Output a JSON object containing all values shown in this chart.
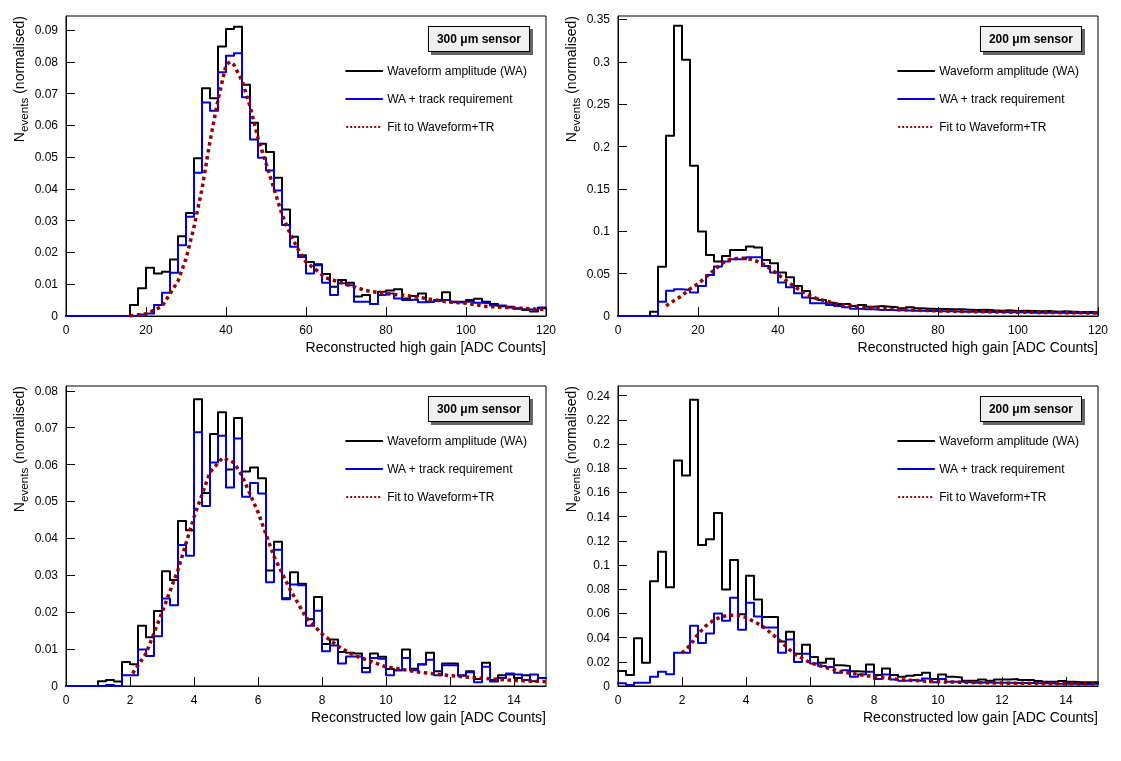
{
  "chart_data": [
    {
      "type": "histogram",
      "xlabel": "Reconstructed high gain [ADC Counts]",
      "ylabel": "N$_{events}$ (normalised)",
      "annotations": [
        "300 μm sensor"
      ],
      "legend": "top right",
      "bins": [
        0,
        2,
        4,
        6,
        8,
        10,
        12,
        14,
        16,
        18,
        20,
        22,
        24,
        26,
        28,
        30,
        32,
        34,
        36,
        38,
        40,
        42,
        44,
        46,
        48,
        50,
        52,
        54,
        56,
        58,
        60,
        62,
        64,
        66,
        68,
        70,
        72,
        74,
        76,
        78,
        80,
        82,
        84,
        86,
        88,
        90,
        92,
        94,
        96,
        98,
        100,
        102,
        104,
        106,
        108,
        110,
        112,
        114,
        116,
        118,
        120
      ],
      "xlim": [
        0,
        120
      ],
      "xticks": [
        0,
        20,
        40,
        60,
        80,
        100,
        120
      ],
      "ylim": [
        0,
        0.0944
      ],
      "yticks": [
        0,
        0.01,
        0.02,
        0.03,
        0.04,
        0.05,
        0.06,
        0.07,
        0.08,
        0.09
      ],
      "series": [
        {
          "name": "Waveform amplitude (WA)",
          "color": "#000000",
          "values": [
            0,
            0,
            0,
            0,
            0,
            0,
            0,
            0,
            0.0035,
            0.0087,
            0.0152,
            0.0134,
            0.0139,
            0.0178,
            0.0251,
            0.0324,
            0.0496,
            0.0717,
            0.0685,
            0.0848,
            0.0903,
            0.091,
            0.0728,
            0.0608,
            0.0542,
            0.0516,
            0.0435,
            0.0335,
            0.0249,
            0.0191,
            0.017,
            0.0163,
            0.0132,
            0.0092,
            0.0113,
            0.0105,
            0.0061,
            0.0066,
            0.0038,
            0.0076,
            0.008,
            0.0084,
            0.0055,
            0.0063,
            0.0071,
            0.0045,
            0.0048,
            0.0075,
            0.0045,
            0.0045,
            0.005,
            0.0054,
            0.0045,
            0.0038,
            0.0031,
            0.0027,
            0.0023,
            0.0019,
            0.0014,
            0.0024
          ]
        },
        {
          "name": "WA + track requirement",
          "color": "#0000dd",
          "values": [
            0,
            0,
            0,
            0,
            0,
            0,
            0,
            0,
            0,
            0.0005,
            0.0008,
            0.0035,
            0.0073,
            0.0136,
            0.0223,
            0.0312,
            0.0451,
            0.0672,
            0.0646,
            0.0767,
            0.0819,
            0.0827,
            0.0688,
            0.0555,
            0.0498,
            0.0458,
            0.0395,
            0.0286,
            0.0218,
            0.0186,
            0.0134,
            0.016,
            0.0105,
            0.0066,
            0.0103,
            0.0097,
            0.0045,
            0.0045,
            0.0038,
            0.0066,
            0.0071,
            0.0055,
            0.005,
            0.0052,
            0.0043,
            0.0045,
            0.005,
            0.005,
            0.0043,
            0.0042,
            0.0045,
            0.0042,
            0.004,
            0.0033,
            0.0033,
            0.0029,
            0.0024,
            0.0021,
            0.0019,
            0.0027
          ]
        },
        {
          "name": "Fit to Waveform+TR",
          "color": "#990000",
          "type": "line",
          "line_style": "dotted",
          "x": [
            16,
            20,
            24,
            28,
            30,
            32,
            34,
            36,
            38,
            40,
            41,
            42,
            44,
            46,
            48,
            50,
            52,
            54,
            56,
            58,
            60,
            65,
            70,
            75,
            80,
            85,
            90,
            95,
            100,
            105,
            110,
            120
          ],
          "values": [
            0,
            0.0007,
            0.003,
            0.011,
            0.018,
            0.028,
            0.04,
            0.055,
            0.068,
            0.079,
            0.08,
            0.079,
            0.074,
            0.066,
            0.056,
            0.048,
            0.04,
            0.032,
            0.026,
            0.021,
            0.017,
            0.012,
            0.01,
            0.008,
            0.007,
            0.0065,
            0.0055,
            0.0045,
            0.004,
            0.003,
            0.0027,
            0.002
          ]
        }
      ]
    },
    {
      "type": "histogram",
      "xlabel": "Reconstructed high gain [ADC Counts]",
      "ylabel": "N$_{events}$ (normalised)",
      "annotations": [
        "200 μm sensor"
      ],
      "legend": "top right",
      "bins": [
        0,
        2,
        4,
        6,
        8,
        10,
        12,
        14,
        16,
        18,
        20,
        22,
        24,
        26,
        28,
        30,
        32,
        34,
        36,
        38,
        40,
        42,
        44,
        46,
        48,
        50,
        52,
        54,
        56,
        58,
        60,
        62,
        64,
        66,
        68,
        70,
        72,
        74,
        76,
        78,
        80,
        82,
        84,
        86,
        88,
        90,
        92,
        94,
        96,
        98,
        100,
        102,
        104,
        106,
        108,
        110,
        112,
        114,
        116,
        118,
        120
      ],
      "xlim": [
        0,
        120
      ],
      "xticks": [
        0,
        20,
        40,
        60,
        80,
        100,
        120
      ],
      "ylim": [
        0,
        0.354
      ],
      "yticks": [
        0,
        0.05,
        0.1,
        0.15,
        0.2,
        0.25,
        0.3,
        0.35
      ],
      "series": [
        {
          "name": "Waveform amplitude (WA)",
          "color": "#000000",
          "values": [
            0,
            0,
            0,
            0,
            0.005,
            0.058,
            0.2126,
            0.3425,
            0.3024,
            0.1772,
            0.0996,
            0.072,
            0.0642,
            0.0709,
            0.078,
            0.078,
            0.0819,
            0.0807,
            0.0661,
            0.0622,
            0.0512,
            0.0457,
            0.0354,
            0.0295,
            0.0209,
            0.0189,
            0.0157,
            0.0142,
            0.0142,
            0.0118,
            0.013,
            0.011,
            0.0118,
            0.011,
            0.0102,
            0.0091,
            0.0102,
            0.0091,
            0.0087,
            0.0083,
            0.0083,
            0.008,
            0.0079,
            0.0075,
            0.0071,
            0.0075,
            0.0067,
            0.0063,
            0.0067,
            0.0059,
            0.0063,
            0.0059,
            0.0055,
            0.0059,
            0.0051,
            0.0055,
            0.0051,
            0.0047,
            0.0047,
            0.0043
          ]
        },
        {
          "name": "WA + track requirement",
          "color": "#0000dd",
          "values": [
            0,
            0,
            0,
            0,
            0,
            0.0169,
            0.0299,
            0.0315,
            0.0307,
            0.0276,
            0.0354,
            0.0484,
            0.0583,
            0.0642,
            0.0669,
            0.0669,
            0.0693,
            0.0693,
            0.0591,
            0.0512,
            0.0394,
            0.0339,
            0.0268,
            0.0217,
            0.015,
            0.015,
            0.013,
            0.0118,
            0.0102,
            0.0087,
            0.0079,
            0.0079,
            0.0071,
            0.0071,
            0.0067,
            0.0067,
            0.0063,
            0.0063,
            0.0059,
            0.0059,
            0.0055,
            0.0055,
            0.0051,
            0.0051,
            0.0051,
            0.0047,
            0.0047,
            0.0047,
            0.0043,
            0.0043,
            0.0043,
            0.0039,
            0.0039,
            0.0039,
            0.0039,
            0.0035,
            0.0035,
            0.0035,
            0.0035,
            0.0031
          ]
        },
        {
          "name": "Fit to Waveform+TR",
          "color": "#990000",
          "type": "line",
          "line_style": "dotted",
          "x": [
            12,
            14,
            16,
            18,
            20,
            22,
            24,
            26,
            28,
            30,
            32,
            34,
            36,
            38,
            40,
            42,
            44,
            46,
            48,
            50,
            55,
            60,
            70,
            80,
            90,
            100,
            110,
            120
          ],
          "values": [
            0.012,
            0.018,
            0.024,
            0.032,
            0.038,
            0.046,
            0.054,
            0.062,
            0.067,
            0.068,
            0.068,
            0.066,
            0.062,
            0.056,
            0.049,
            0.042,
            0.035,
            0.029,
            0.024,
            0.02,
            0.014,
            0.011,
            0.0075,
            0.006,
            0.005,
            0.0045,
            0.004,
            0.0035
          ]
        }
      ]
    },
    {
      "type": "histogram",
      "xlabel": "Reconstructed low gain [ADC Counts]",
      "ylabel": "N$_{events}$ (normalised)",
      "annotations": [
        "300 μm sensor"
      ],
      "legend": "top right",
      "bins": [
        0,
        0.25,
        0.5,
        0.75,
        1,
        1.25,
        1.5,
        1.75,
        2,
        2.25,
        2.5,
        2.75,
        3,
        3.25,
        3.5,
        3.75,
        4,
        4.25,
        4.5,
        4.75,
        5,
        5.25,
        5.5,
        5.75,
        6,
        6.25,
        6.5,
        6.75,
        7,
        7.25,
        7.5,
        7.75,
        8,
        8.25,
        8.5,
        8.75,
        9,
        9.25,
        9.5,
        9.75,
        10,
        10.25,
        10.5,
        10.75,
        11,
        11.25,
        11.5,
        11.75,
        12,
        12.25,
        12.5,
        12.75,
        13,
        13.25,
        13.5,
        13.75,
        14,
        14.25,
        14.5,
        14.75,
        15
      ],
      "xlim": [
        0,
        15
      ],
      "xticks": [
        0,
        2,
        4,
        6,
        8,
        10,
        12,
        14
      ],
      "ylim": [
        0,
        0.0813
      ],
      "yticks": [
        0,
        0.01,
        0.02,
        0.03,
        0.04,
        0.05,
        0.06,
        0.07,
        0.08
      ],
      "series": [
        {
          "name": "Waveform amplitude (WA)",
          "color": "#000000",
          "values": [
            0,
            0,
            0,
            0,
            0.0013,
            0.0016,
            0.0012,
            0.0065,
            0.0059,
            0.0163,
            0.0132,
            0.0203,
            0.0311,
            0.0287,
            0.0447,
            0.0422,
            0.0777,
            0.0523,
            0.0683,
            0.0742,
            0.0587,
            0.0726,
            0.0581,
            0.0592,
            0.0563,
            0.0313,
            0.0391,
            0.0238,
            0.0308,
            0.0277,
            0.0181,
            0.0241,
            0.0114,
            0.0126,
            0.0092,
            0.009,
            0.0088,
            0.0049,
            0.0088,
            0.0079,
            0.0046,
            0.0043,
            0.0099,
            0.0047,
            0.0059,
            0.009,
            0.004,
            0.0061,
            0.0061,
            0.0028,
            0.004,
            0.0019,
            0.0063,
            0.0016,
            0.0029,
            0.0031,
            0.0022,
            0.0029,
            0.0013,
            0.0022
          ]
        },
        {
          "name": "WA + track requirement",
          "color": "#0000dd",
          "values": [
            0,
            0,
            0,
            0,
            0,
            0.0003,
            0,
            0.0029,
            0.0029,
            0.0099,
            0.0081,
            0.0135,
            0.0237,
            0.0219,
            0.0382,
            0.0353,
            0.0688,
            0.0488,
            0.0606,
            0.0678,
            0.0538,
            0.0671,
            0.0513,
            0.055,
            0.0522,
            0.0281,
            0.0369,
            0.0235,
            0.0275,
            0.0273,
            0.0163,
            0.0204,
            0.0094,
            0.011,
            0.0061,
            0.008,
            0.008,
            0.0037,
            0.0076,
            0.0074,
            0.0029,
            0.0043,
            0.0076,
            0.0043,
            0.0058,
            0.0071,
            0.0029,
            0.0056,
            0.0056,
            0.0029,
            0.0037,
            0.001,
            0.0052,
            0.0012,
            0.0022,
            0.0034,
            0.0031,
            0.0016,
            0.0031,
            0.0022
          ]
        },
        {
          "name": "Fit to Waveform+TR",
          "color": "#990000",
          "type": "line",
          "line_style": "dotted",
          "x": [
            2.08,
            2.5,
            3,
            3.5,
            4,
            4.5,
            4.9,
            5.25,
            5.5,
            6,
            6.5,
            7,
            7.5,
            8,
            8.5,
            9,
            10,
            11,
            12,
            13,
            14,
            15
          ],
          "values": [
            0.0034,
            0.0088,
            0.0199,
            0.0315,
            0.0458,
            0.0579,
            0.0619,
            0.0605,
            0.057,
            0.0471,
            0.0351,
            0.0262,
            0.0186,
            0.0141,
            0.0108,
            0.0083,
            0.0052,
            0.0038,
            0.0028,
            0.0021,
            0.0015,
            0.0012
          ]
        }
      ]
    },
    {
      "type": "histogram",
      "xlabel": "Reconstructed low gain [ADC Counts]",
      "ylabel": "N$_{events}$ (normalised)",
      "annotations": [
        "200 μm sensor"
      ],
      "legend": "top right",
      "bins": [
        0,
        0.25,
        0.5,
        0.75,
        1,
        1.25,
        1.5,
        1.75,
        2,
        2.25,
        2.5,
        2.75,
        3,
        3.25,
        3.5,
        3.75,
        4,
        4.25,
        4.5,
        4.75,
        5,
        5.25,
        5.5,
        5.75,
        6,
        6.25,
        6.5,
        6.75,
        7,
        7.25,
        7.5,
        7.75,
        8,
        8.25,
        8.5,
        8.75,
        9,
        9.25,
        9.5,
        9.75,
        10,
        10.25,
        10.5,
        10.75,
        11,
        11.25,
        11.5,
        11.75,
        12,
        12.25,
        12.5,
        12.75,
        13,
        13.25,
        13.5,
        13.75,
        14,
        14.25,
        14.5,
        14.75,
        15
      ],
      "xlim": [
        0,
        15
      ],
      "xticks": [
        0,
        2,
        4,
        6,
        8,
        10,
        12,
        14
      ],
      "ylim": [
        0,
        0.248
      ],
      "yticks": [
        0,
        0.02,
        0.04,
        0.06,
        0.08,
        0.1,
        0.12,
        0.14,
        0.16,
        0.18,
        0.2,
        0.22,
        0.24
      ],
      "series": [
        {
          "name": "Waveform amplitude (WA)",
          "color": "#000000",
          "values": [
            0.0125,
            0.009,
            0.0395,
            0.0193,
            0.0865,
            0.111,
            0.0816,
            0.1864,
            0.1741,
            0.2367,
            0.1165,
            0.1214,
            0.1431,
            0.0797,
            0.1042,
            0.0593,
            0.0912,
            0.0716,
            0.0571,
            0.0571,
            0.0367,
            0.0449,
            0.0267,
            0.034,
            0.0239,
            0.0193,
            0.0226,
            0.0171,
            0.0166,
            0.0122,
            0.0117,
            0.0177,
            0.009,
            0.0144,
            0.009,
            0.0076,
            0.0084,
            0.009,
            0.0109,
            0.0057,
            0.0095,
            0.0076,
            0.0071,
            0.0044,
            0.0044,
            0.0054,
            0.0044,
            0.0054,
            0.0054,
            0.0057,
            0.0049,
            0.0049,
            0.0041,
            0.0035,
            0.0035,
            0.0041,
            0.0035,
            0.003,
            0.003,
            0.003
          ]
        },
        {
          "name": "WA + track requirement",
          "color": "#0000dd",
          "values": [
            0.0022,
            0.0008,
            0.0027,
            0.0027,
            0.0076,
            0.0117,
            0.0098,
            0.0275,
            0.0275,
            0.0498,
            0.0356,
            0.0435,
            0.0599,
            0.0539,
            0.0729,
            0.0465,
            0.0688,
            0.0574,
            0.0484,
            0.0484,
            0.0275,
            0.0384,
            0.0199,
            0.0267,
            0.0185,
            0.0166,
            0.0158,
            0.0109,
            0.0131,
            0.0076,
            0.0095,
            0.0117,
            0.0057,
            0.0095,
            0.0054,
            0.0044,
            0.0049,
            0.0044,
            0.0063,
            0.003,
            0.0057,
            0.0035,
            0.0035,
            0.003,
            0.0027,
            0.003,
            0.0027,
            0.0027,
            0.0027,
            0.0024,
            0.0024,
            0.0024,
            0.0022,
            0.0022,
            0.0019,
            0.0019,
            0.0019,
            0.0016,
            0.0016,
            0.0019
          ]
        },
        {
          "name": "Fit to Waveform+TR",
          "color": "#990000",
          "type": "line",
          "line_style": "dotted",
          "x": [
            2,
            2.25,
            2.5,
            2.75,
            3,
            3.25,
            3.5,
            3.75,
            4,
            4.5,
            5,
            5.5,
            6,
            6.5,
            7,
            8,
            9,
            10,
            12,
            15
          ],
          "values": [
            0.0272,
            0.0335,
            0.043,
            0.0498,
            0.0547,
            0.0574,
            0.0585,
            0.0585,
            0.0566,
            0.0498,
            0.0389,
            0.0267,
            0.0193,
            0.0152,
            0.0117,
            0.0076,
            0.0049,
            0.0035,
            0.0024,
            0.0016
          ]
        }
      ]
    }
  ]
}
